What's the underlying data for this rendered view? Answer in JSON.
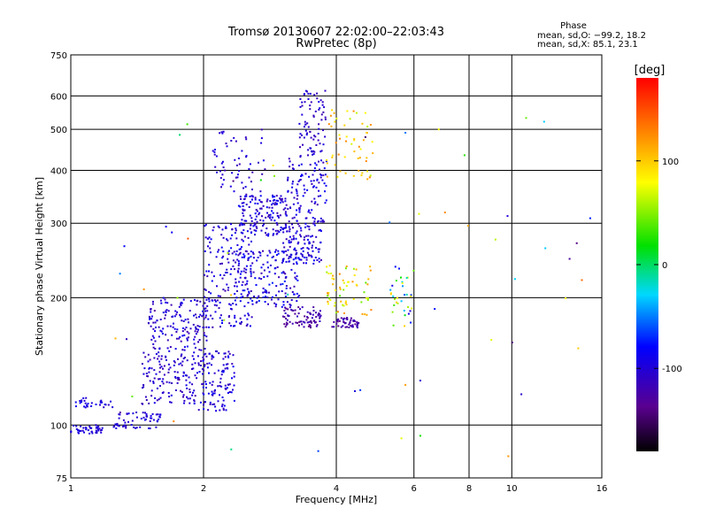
{
  "chart_data": {
    "type": "scatter",
    "title": "Tromsø 20130607 22:02:00–22:03:43",
    "subtitle": "RwPretec (8p)",
    "xlabel": "Frequency [MHz]",
    "ylabel": "Stationary phase Virtual Height [km]",
    "x_scale": "log",
    "y_scale": "log",
    "xlim": [
      1,
      16
    ],
    "ylim": [
      75,
      750
    ],
    "x_ticks": [
      1,
      2,
      4,
      6,
      8,
      10,
      16
    ],
    "x_tick_labels": [
      "1",
      "2",
      "4",
      "6",
      "8",
      "10",
      "16"
    ],
    "y_ticks": [
      75,
      100,
      200,
      300,
      400,
      500,
      600,
      750
    ],
    "y_tick_labels": [
      "75",
      "100",
      "200",
      "300",
      "400",
      "500",
      "600",
      "750"
    ],
    "grid": true,
    "stats": {
      "header": "Phase",
      "line_o": "mean, sd,O: −99.2, 18.2",
      "line_x": "mean, sd,X:  85.1, 23.1"
    },
    "colorbar": {
      "label": "[deg]",
      "range": [
        -180,
        180
      ],
      "ticks": [
        100,
        0,
        -100
      ],
      "tick_labels": [
        "100",
        "0",
        "-100"
      ]
    },
    "point_clusters": [
      {
        "x": [
          1.0,
          1.18
        ],
        "y": [
          95,
          100
        ],
        "n": 45,
        "phase": [
          -110,
          -90
        ]
      },
      {
        "x": [
          1.0,
          1.25
        ],
        "y": [
          110,
          116
        ],
        "n": 30,
        "phase": [
          -110,
          -85
        ]
      },
      {
        "x": [
          1.25,
          1.6
        ],
        "y": [
          98,
          108
        ],
        "n": 60,
        "phase": [
          -110,
          -90
        ]
      },
      {
        "x": [
          1.45,
          1.95
        ],
        "y": [
          112,
          150
        ],
        "n": 140,
        "phase": [
          -120,
          -90
        ]
      },
      {
        "x": [
          1.5,
          2.05
        ],
        "y": [
          150,
          200
        ],
        "n": 150,
        "phase": [
          -120,
          -85
        ]
      },
      {
        "x": [
          1.95,
          2.35
        ],
        "y": [
          108,
          150
        ],
        "n": 120,
        "phase": [
          -120,
          -80
        ]
      },
      {
        "x": [
          2.0,
          2.6
        ],
        "y": [
          170,
          300
        ],
        "n": 200,
        "phase": [
          -120,
          -80
        ]
      },
      {
        "x": [
          2.4,
          3.1
        ],
        "y": [
          280,
          350
        ],
        "n": 150,
        "phase": [
          -120,
          -80
        ]
      },
      {
        "x": [
          2.35,
          3.3
        ],
        "y": [
          190,
          260
        ],
        "n": 150,
        "phase": [
          -120,
          -70
        ]
      },
      {
        "x": [
          2.1,
          2.8
        ],
        "y": [
          350,
          500
        ],
        "n": 60,
        "phase": [
          -120,
          -90
        ]
      },
      {
        "x": [
          3.0,
          3.7
        ],
        "y": [
          170,
          190
        ],
        "n": 80,
        "phase": [
          -140,
          -110
        ]
      },
      {
        "x": [
          3.0,
          3.7
        ],
        "y": [
          240,
          300
        ],
        "n": 120,
        "phase": [
          -120,
          -80
        ]
      },
      {
        "x": [
          3.1,
          3.8
        ],
        "y": [
          300,
          430
        ],
        "n": 110,
        "phase": [
          -120,
          -80
        ]
      },
      {
        "x": [
          3.3,
          3.8
        ],
        "y": [
          430,
          620
        ],
        "n": 80,
        "phase": [
          -120,
          -90
        ]
      },
      {
        "x": [
          3.9,
          4.5
        ],
        "y": [
          170,
          180
        ],
        "n": 50,
        "phase": [
          -140,
          -110
        ]
      },
      {
        "x": [
          3.8,
          4.8
        ],
        "y": [
          180,
          240
        ],
        "n": 60,
        "phase": [
          40,
          130
        ]
      },
      {
        "x": [
          3.8,
          4.9
        ],
        "y": [
          380,
          560
        ],
        "n": 55,
        "phase": [
          60,
          130
        ]
      },
      {
        "x": [
          5.3,
          6.0
        ],
        "y": [
          170,
          240
        ],
        "n": 35,
        "phase": [
          -100,
          100
        ]
      },
      {
        "x": [
          1.2,
          15.5
        ],
        "y": [
          80,
          600
        ],
        "n": 60,
        "phase": [
          -150,
          150
        ]
      }
    ]
  }
}
